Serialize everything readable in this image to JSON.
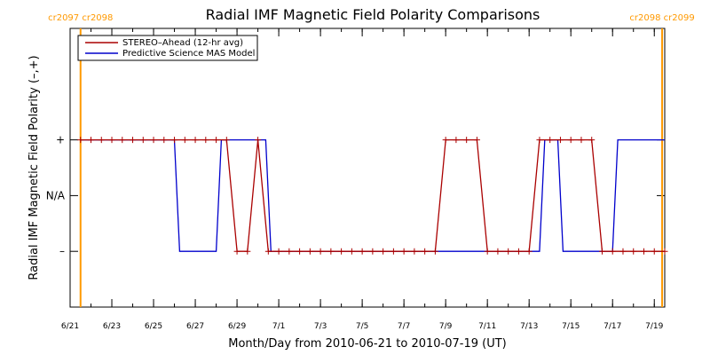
{
  "chart_data": {
    "type": "line",
    "title": "Radial IMF Magnetic Field Polarity Comparisons",
    "xlabel": "Month/Day from 2010-06-21 to 2010-07-19 (UT)",
    "ylabel": "Radial IMF Magnetic Field Polarity (–,+)",
    "x_range": [
      "2010-06-21",
      "2010-07-19T12:00"
    ],
    "x_ticks": [
      {
        "date": "2010-06-21",
        "label": "6/21"
      },
      {
        "date": "2010-06-23",
        "label": "6/23"
      },
      {
        "date": "2010-06-25",
        "label": "6/25"
      },
      {
        "date": "2010-06-27",
        "label": "6/27"
      },
      {
        "date": "2010-06-29",
        "label": "6/29"
      },
      {
        "date": "2010-07-01",
        "label": "7/1"
      },
      {
        "date": "2010-07-03",
        "label": "7/3"
      },
      {
        "date": "2010-07-05",
        "label": "7/5"
      },
      {
        "date": "2010-07-07",
        "label": "7/7"
      },
      {
        "date": "2010-07-09",
        "label": "7/9"
      },
      {
        "date": "2010-07-11",
        "label": "7/11"
      },
      {
        "date": "2010-07-13",
        "label": "7/13"
      },
      {
        "date": "2010-07-15",
        "label": "7/15"
      },
      {
        "date": "2010-07-17",
        "label": "7/17"
      },
      {
        "date": "2010-07-19",
        "label": "7/19"
      }
    ],
    "y_categories": [
      {
        "label": "–",
        "value": -1
      },
      {
        "label": "N/A",
        "value": 0
      },
      {
        "label": "+",
        "value": 1
      }
    ],
    "ylim": [
      -2,
      3
    ],
    "grid": false,
    "legend_position": "top-left",
    "carrington_markers": [
      {
        "date": "2010-06-21T12:00",
        "label": "cr2097 cr2098",
        "color": "#ff9900"
      },
      {
        "date": "2010-07-19T09:00",
        "label": "cr2098 cr2099",
        "color": "#ff9900"
      }
    ],
    "series": [
      {
        "name": "STEREO–Ahead (12-hr avg)",
        "color": "#aa0000",
        "marker": "plus",
        "points": [
          {
            "date": "2010-06-21T12:00",
            "value": 1
          },
          {
            "date": "2010-06-22T00:00",
            "value": 1
          },
          {
            "date": "2010-06-22T12:00",
            "value": 1
          },
          {
            "date": "2010-06-23T00:00",
            "value": 1
          },
          {
            "date": "2010-06-23T12:00",
            "value": 1
          },
          {
            "date": "2010-06-24T00:00",
            "value": 1
          },
          {
            "date": "2010-06-24T12:00",
            "value": 1
          },
          {
            "date": "2010-06-25T00:00",
            "value": 1
          },
          {
            "date": "2010-06-25T12:00",
            "value": 1
          },
          {
            "date": "2010-06-26T00:00",
            "value": 1
          },
          {
            "date": "2010-06-26T12:00",
            "value": 1
          },
          {
            "date": "2010-06-27T00:00",
            "value": 1
          },
          {
            "date": "2010-06-27T12:00",
            "value": 1
          },
          {
            "date": "2010-06-28T00:00",
            "value": 1
          },
          {
            "date": "2010-06-28T12:00",
            "value": 1
          },
          {
            "date": "2010-06-29T00:00",
            "value": -1
          },
          {
            "date": "2010-06-29T12:00",
            "value": -1
          },
          {
            "date": "2010-06-30T00:00",
            "value": 1
          },
          {
            "date": "2010-06-30T12:00",
            "value": -1
          },
          {
            "date": "2010-07-01T00:00",
            "value": -1
          },
          {
            "date": "2010-07-01T12:00",
            "value": -1
          },
          {
            "date": "2010-07-02T00:00",
            "value": -1
          },
          {
            "date": "2010-07-02T12:00",
            "value": -1
          },
          {
            "date": "2010-07-03T00:00",
            "value": -1
          },
          {
            "date": "2010-07-03T12:00",
            "value": -1
          },
          {
            "date": "2010-07-04T00:00",
            "value": -1
          },
          {
            "date": "2010-07-04T12:00",
            "value": -1
          },
          {
            "date": "2010-07-05T00:00",
            "value": -1
          },
          {
            "date": "2010-07-05T12:00",
            "value": -1
          },
          {
            "date": "2010-07-06T00:00",
            "value": -1
          },
          {
            "date": "2010-07-06T12:00",
            "value": -1
          },
          {
            "date": "2010-07-07T00:00",
            "value": -1
          },
          {
            "date": "2010-07-07T12:00",
            "value": -1
          },
          {
            "date": "2010-07-08T00:00",
            "value": -1
          },
          {
            "date": "2010-07-08T12:00",
            "value": -1
          },
          {
            "date": "2010-07-09T00:00",
            "value": 1
          },
          {
            "date": "2010-07-09T12:00",
            "value": 1
          },
          {
            "date": "2010-07-10T00:00",
            "value": 1
          },
          {
            "date": "2010-07-10T12:00",
            "value": 1
          },
          {
            "date": "2010-07-11T00:00",
            "value": -1
          },
          {
            "date": "2010-07-11T12:00",
            "value": -1
          },
          {
            "date": "2010-07-12T00:00",
            "value": -1
          },
          {
            "date": "2010-07-12T12:00",
            "value": -1
          },
          {
            "date": "2010-07-13T00:00",
            "value": -1
          },
          {
            "date": "2010-07-13T12:00",
            "value": 1
          },
          {
            "date": "2010-07-14T00:00",
            "value": 1
          },
          {
            "date": "2010-07-14T12:00",
            "value": 1
          },
          {
            "date": "2010-07-15T00:00",
            "value": 1
          },
          {
            "date": "2010-07-15T12:00",
            "value": 1
          },
          {
            "date": "2010-07-16T00:00",
            "value": 1
          },
          {
            "date": "2010-07-16T12:00",
            "value": -1
          },
          {
            "date": "2010-07-17T00:00",
            "value": -1
          },
          {
            "date": "2010-07-17T12:00",
            "value": -1
          },
          {
            "date": "2010-07-18T00:00",
            "value": -1
          },
          {
            "date": "2010-07-18T12:00",
            "value": -1
          },
          {
            "date": "2010-07-19T00:00",
            "value": -1
          },
          {
            "date": "2010-07-19T12:00",
            "value": -1
          }
        ]
      },
      {
        "name": "Predictive Science MAS Model",
        "color": "#0000cc",
        "marker": "none",
        "points": [
          {
            "date": "2010-06-21T12:00",
            "value": 1
          },
          {
            "date": "2010-06-26T00:00",
            "value": 1
          },
          {
            "date": "2010-06-26T06:00",
            "value": -1
          },
          {
            "date": "2010-06-28T00:00",
            "value": -1
          },
          {
            "date": "2010-06-28T06:00",
            "value": 1
          },
          {
            "date": "2010-06-30T09:00",
            "value": 1
          },
          {
            "date": "2010-06-30T15:00",
            "value": -1
          },
          {
            "date": "2010-07-13T12:00",
            "value": -1
          },
          {
            "date": "2010-07-13T18:00",
            "value": 1
          },
          {
            "date": "2010-07-14T09:00",
            "value": 1
          },
          {
            "date": "2010-07-14T15:00",
            "value": -1
          },
          {
            "date": "2010-07-17T00:00",
            "value": -1
          },
          {
            "date": "2010-07-17T06:00",
            "value": 1
          },
          {
            "date": "2010-07-19T12:00",
            "value": 1
          }
        ]
      }
    ]
  }
}
